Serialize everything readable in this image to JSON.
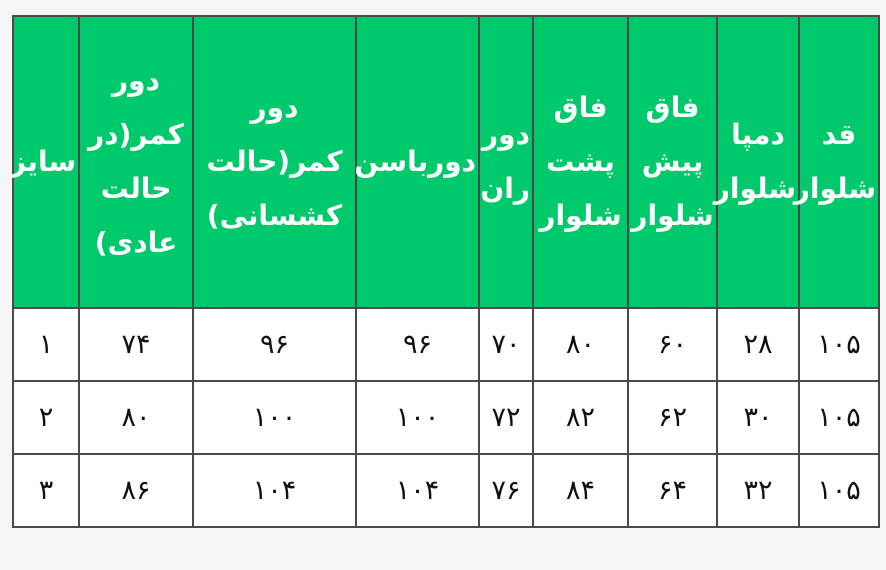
{
  "table": {
    "headers": [
      "قد شلوار",
      "دمپا شلوار",
      "فاق پیش شلوار",
      "فاق پشت شلوار",
      "دور ران",
      "دورباسن",
      "دور کمر(حالت کشسانی)",
      "دور کمر(در حالت عادی)",
      "سایز"
    ],
    "rows": [
      [
        "۱۰۵",
        "۲۸",
        "۶۰",
        "۸۰",
        "۷۰",
        "۹۶",
        "۹۶",
        "۷۴",
        "۱"
      ],
      [
        "۱۰۵",
        "۳۰",
        "۶۲",
        "۸۲",
        "۷۲",
        "۱۰۰",
        "۱۰۰",
        "۸۰",
        "۲"
      ],
      [
        "۱۰۵",
        "۳۲",
        "۶۴",
        "۸۴",
        "۷۶",
        "۱۰۴",
        "۱۰۴",
        "۸۶",
        "۳"
      ]
    ]
  },
  "colors": {
    "header_bg": "#00c96b",
    "header_text": "#ffffff",
    "border": "#4a4a4a",
    "page_bg": "#f6f6f6"
  }
}
